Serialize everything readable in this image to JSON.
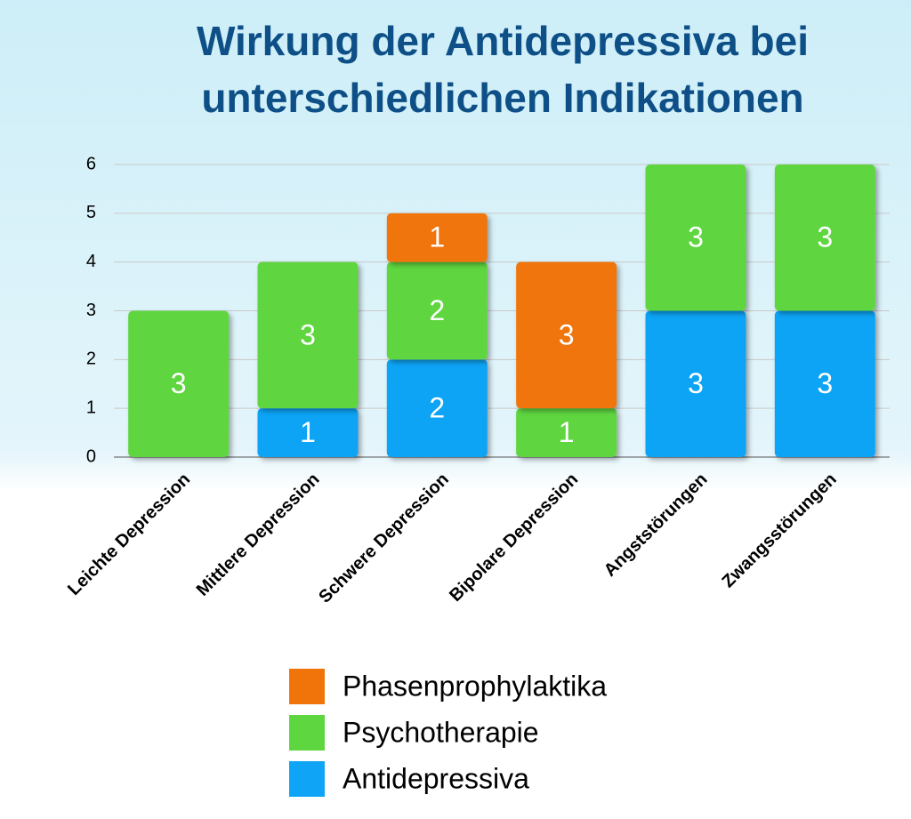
{
  "chart_data": {
    "type": "stacked_bar",
    "title": "Wirkung der Antidepressiva bei unterschiedlichen Indikationen",
    "categories": [
      "Leichte Depression",
      "Mittlere Depression",
      "Schwere Depression",
      "Bipolare Depression",
      "Angststörungen",
      "Zwangsstörungen"
    ],
    "series": [
      {
        "name": "Antidepressiva",
        "color": "#0fa4f6",
        "values": [
          null,
          1,
          2,
          null,
          3,
          3
        ]
      },
      {
        "name": "Psychotherapie",
        "color": "#5ed640",
        "values": [
          3,
          3,
          2,
          1,
          3,
          3
        ]
      },
      {
        "name": "Phasenprophylaktika",
        "color": "#f07409",
        "values": [
          null,
          null,
          1,
          3,
          null,
          null
        ]
      }
    ],
    "ylim": [
      0,
      6
    ],
    "yticks": [
      0,
      1,
      2,
      3,
      4,
      5,
      6
    ],
    "grid": true
  }
}
